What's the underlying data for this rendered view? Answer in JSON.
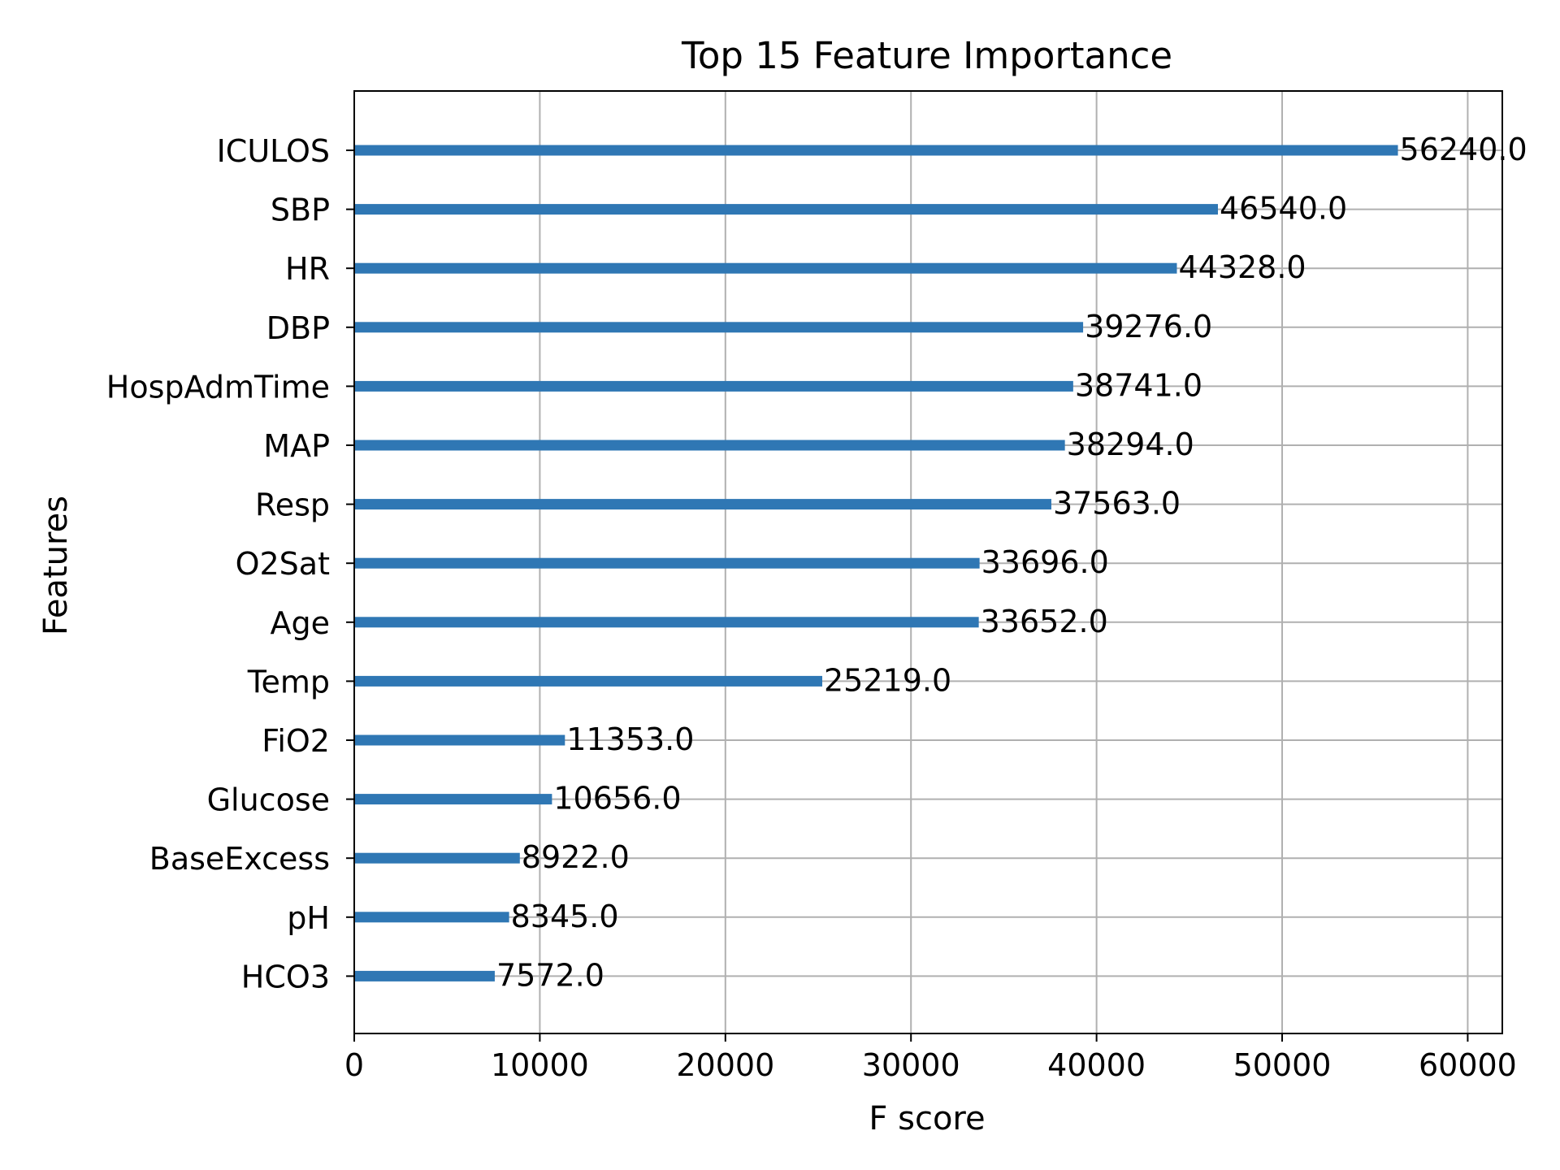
{
  "chart_data": {
    "type": "bar",
    "orientation": "horizontal",
    "title": "Top 15 Feature Importance",
    "xlabel": "F score",
    "ylabel": "Features",
    "xlim": [
      0,
      61864
    ],
    "xticks": [
      0,
      10000,
      20000,
      30000,
      40000,
      50000,
      60000
    ],
    "grid": true,
    "categories": [
      "ICULOS",
      "SBP",
      "HR",
      "DBP",
      "HospAdmTime",
      "MAP",
      "Resp",
      "O2Sat",
      "Age",
      "Temp",
      "FiO2",
      "Glucose",
      "BaseExcess",
      "pH",
      "HCO3"
    ],
    "values": [
      56240.0,
      46540.0,
      44328.0,
      39276.0,
      38741.0,
      38294.0,
      37563.0,
      33696.0,
      33652.0,
      25219.0,
      11353.0,
      10656.0,
      8922.0,
      8345.0,
      7572.0
    ],
    "value_labels": [
      "56240.0",
      "46540.0",
      "44328.0",
      "39276.0",
      "38741.0",
      "38294.0",
      "37563.0",
      "33696.0",
      "33652.0",
      "25219.0",
      "11353.0",
      "10656.0",
      "8922.0",
      "8345.0",
      "7572.0"
    ],
    "bar_color": "#2f77b4",
    "grid_color": "#b0b0b0"
  }
}
